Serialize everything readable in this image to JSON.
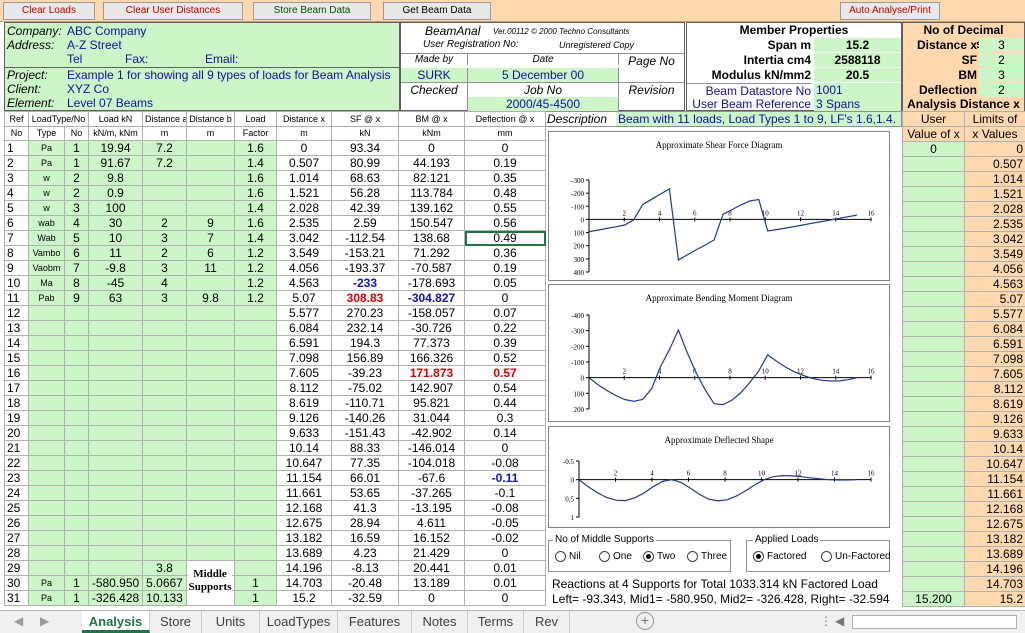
{
  "toolbar": {
    "clear_loads": "Clear Loads",
    "clear_user_distances": "Clear User Distances",
    "store_beam_data": "Store Beam Data",
    "get_beam_data": "Get Beam Data",
    "auto_analyse_print": "Auto Analyse/Print"
  },
  "info": {
    "company_label": "Company:",
    "company": "ABC Company",
    "address_label": "Address:",
    "address": "A-Z Street",
    "tel_label": "Tel",
    "fax_label": "Fax:",
    "email_label": "Email:",
    "project_label": "Project:",
    "project": "Example 1 for showing all 9 types of loads for Beam Analysis",
    "client_label": "Client:",
    "client": "XYZ Co",
    "element_label": "Element:",
    "element": "Level 07 Beams"
  },
  "beamanal": {
    "title": "BeamAnal",
    "version": "Ver.00112  © 2000 Techno Consultants",
    "registration": "User Registration No:",
    "registration_value": "Unregistered Copy",
    "made_by": "Made by",
    "date": "Date",
    "page_no": "Page No",
    "made_by_value": "SURK",
    "date_value": "5 December 00",
    "checked": "Checked",
    "job_no": "Job No",
    "revision": "Revision",
    "job_no_value": "2000/45-4500"
  },
  "member": {
    "title": "Member Properties",
    "span_label": "Span m",
    "span": "15.2",
    "inertia_label": "Intertia cm4",
    "inertia": "2588118",
    "modulus_label": "Modulus kN/mm2",
    "modulus": "20.5",
    "datastore_label": "Beam Datastore No",
    "datastore": "1001",
    "reference_label": "User Beam Reference",
    "reference": "3 Spans"
  },
  "decimals": {
    "title": "No of Decimal Places",
    "rows": [
      {
        "label": "Distance x",
        "value": "3"
      },
      {
        "label": "SF",
        "value": "2"
      },
      {
        "label": "BM",
        "value": "3"
      },
      {
        "label": "Deflection",
        "value": "2"
      }
    ],
    "analysis_title": "Analysis Distance x",
    "user_header1": "User",
    "user_header2": "Value of x",
    "limits_header1": "Limits of",
    "limits_header2": "x Values"
  },
  "description": {
    "label": "Description",
    "value": "Beam with 11 loads, Load Types 1 to 9, LF's 1.6,1.4."
  },
  "table_headers": {
    "ref": "Ref",
    "no": "No",
    "loadtype": "LoadType/No",
    "type": "Type",
    "no2": "No",
    "load": "Load kN",
    "load_unit": "kN/m, kNm",
    "dista": "Distance a",
    "distb": "Distance b",
    "m": "m",
    "lfactor": "Load",
    "factor": "Factor",
    "distx": "Distance x",
    "sf": "SF @ x",
    "kn": "kN",
    "bm": "BM @ x",
    "knm": "kNm",
    "defl": "Deflection @ x",
    "mm": "mm"
  },
  "load_rows": [
    [
      "1",
      "Pa",
      "1",
      "19.94",
      "7.2",
      "",
      "1.6"
    ],
    [
      "2",
      "Pa",
      "1",
      "91.67",
      "7.2",
      "",
      "1.4"
    ],
    [
      "3",
      "w",
      "2",
      "9.8",
      "",
      "",
      "1.6"
    ],
    [
      "4",
      "w",
      "2",
      "0.9",
      "",
      "",
      "1.6"
    ],
    [
      "5",
      "w",
      "3",
      "100",
      "",
      "",
      "1.4"
    ],
    [
      "6",
      "wab",
      "4",
      "30",
      "2",
      "9",
      "1.6"
    ],
    [
      "7",
      "Wab",
      "5",
      "10",
      "3",
      "7",
      "1.4"
    ],
    [
      "8",
      "Vambo",
      "6",
      "11",
      "2",
      "6",
      "1.2"
    ],
    [
      "9",
      "Vaobm",
      "7",
      "-9.8",
      "3",
      "11",
      "1.2"
    ],
    [
      "10",
      "Ma",
      "8",
      "-45",
      "4",
      "",
      "1.2"
    ],
    [
      "11",
      "Pab",
      "9",
      "63",
      "3",
      "9.8",
      "1.2"
    ],
    [
      "12",
      "",
      "",
      "",
      "",
      "",
      ""
    ],
    [
      "13",
      "",
      "",
      "",
      "",
      "",
      ""
    ],
    [
      "14",
      "",
      "",
      "",
      "",
      "",
      ""
    ],
    [
      "15",
      "",
      "",
      "",
      "",
      "",
      ""
    ],
    [
      "16",
      "",
      "",
      "",
      "",
      "",
      ""
    ],
    [
      "17",
      "",
      "",
      "",
      "",
      "",
      ""
    ],
    [
      "18",
      "",
      "",
      "",
      "",
      "",
      ""
    ],
    [
      "19",
      "",
      "",
      "",
      "",
      "",
      ""
    ],
    [
      "20",
      "",
      "",
      "",
      "",
      "",
      ""
    ],
    [
      "21",
      "",
      "",
      "",
      "",
      "",
      ""
    ],
    [
      "22",
      "",
      "",
      "",
      "",
      "",
      ""
    ],
    [
      "23",
      "",
      "",
      "",
      "",
      "",
      ""
    ],
    [
      "24",
      "",
      "",
      "",
      "",
      "",
      ""
    ],
    [
      "25",
      "",
      "",
      "",
      "",
      "",
      ""
    ],
    [
      "26",
      "",
      "",
      "",
      "",
      "",
      ""
    ],
    [
      "27",
      "",
      "",
      "",
      "",
      "",
      ""
    ],
    [
      "28",
      "",
      "",
      "",
      "",
      "",
      ""
    ],
    [
      "29",
      "",
      "",
      "",
      "3.8",
      "",
      ""
    ],
    [
      "30",
      "Pa",
      "1",
      "-580.950",
      "5.0667",
      "",
      "1"
    ],
    [
      "31",
      "Pa",
      "1",
      "-326.428",
      "10.133",
      "",
      "1"
    ]
  ],
  "middle_supports_label": "Middle Supports",
  "results_rows": [
    [
      "0",
      "93.34",
      "0",
      "0"
    ],
    [
      "0.507",
      "80.99",
      "44.193",
      "0.19"
    ],
    [
      "1.014",
      "68.63",
      "82.121",
      "0.35"
    ],
    [
      "1.521",
      "56.28",
      "113.784",
      "0.48"
    ],
    [
      "2.028",
      "42.39",
      "139.162",
      "0.55"
    ],
    [
      "2.535",
      "2.59",
      "150.547",
      "0.56"
    ],
    [
      "3.042",
      "-112.54",
      "138.68",
      "0.49"
    ],
    [
      "3.549",
      "-153.21",
      "71.292",
      "0.36"
    ],
    [
      "4.056",
      "-193.37",
      "-70.587",
      "0.19"
    ],
    [
      "4.563",
      "-233",
      "-178.693",
      "0.05"
    ],
    [
      "5.07",
      "308.83",
      "-304.827",
      "0"
    ],
    [
      "5.577",
      "270.23",
      "-158.057",
      "0.07"
    ],
    [
      "6.084",
      "232.14",
      "-30.726",
      "0.22"
    ],
    [
      "6.591",
      "194.3",
      "77.373",
      "0.39"
    ],
    [
      "7.098",
      "156.89",
      "166.326",
      "0.52"
    ],
    [
      "7.605",
      "-39.23",
      "171.873",
      "0.57"
    ],
    [
      "8.112",
      "-75.02",
      "142.907",
      "0.54"
    ],
    [
      "8.619",
      "-110.71",
      "95.821",
      "0.44"
    ],
    [
      "9.126",
      "-140.26",
      "31.044",
      "0.3"
    ],
    [
      "9.633",
      "-151.43",
      "-42.902",
      "0.14"
    ],
    [
      "10.14",
      "88.33",
      "-146.014",
      "0"
    ],
    [
      "10.647",
      "77.35",
      "-104.018",
      "-0.08"
    ],
    [
      "11.154",
      "66.01",
      "-67.6",
      "-0.11"
    ],
    [
      "11.661",
      "53.65",
      "-37.265",
      "-0.1"
    ],
    [
      "12.168",
      "41.3",
      "-13.195",
      "-0.08"
    ],
    [
      "12.675",
      "28.94",
      "4.611",
      "-0.05"
    ],
    [
      "13.182",
      "16.59",
      "16.152",
      "-0.02"
    ],
    [
      "13.689",
      "4.23",
      "21.429",
      "0"
    ],
    [
      "14.196",
      "-8.13",
      "20.441",
      "0.01"
    ],
    [
      "14.703",
      "-20.48",
      "13.189",
      "0.01"
    ],
    [
      "15.2",
      "-32.59",
      "0",
      "0"
    ]
  ],
  "user_x_values": [
    "0",
    "",
    "",
    "",
    "",
    "",
    "",
    "",
    "",
    "",
    "",
    "",
    "",
    "",
    "",
    "",
    "",
    "",
    "",
    "",
    "",
    "",
    "",
    "",
    "",
    "",
    "",
    "",
    "",
    "",
    "15.200"
  ],
  "limit_x_values": [
    "0",
    "0.507",
    "1.014",
    "1.521",
    "2.028",
    "2.535",
    "3.042",
    "3.549",
    "4.056",
    "4.563",
    "5.07",
    "5.577",
    "6.084",
    "6.591",
    "7.098",
    "7.605",
    "8.112",
    "8.619",
    "9.126",
    "9.633",
    "10.14",
    "10.647",
    "11.154",
    "11.661",
    "12.168",
    "12.675",
    "13.182",
    "13.689",
    "14.196",
    "14.703",
    "15.2"
  ],
  "chart_data": [
    {
      "type": "line",
      "title": "Approximate Shear Force Diagram",
      "x": [
        0,
        0.507,
        1.014,
        1.521,
        2.028,
        2.535,
        3.042,
        3.549,
        4.056,
        4.563,
        5.07,
        5.577,
        6.084,
        6.591,
        7.098,
        7.605,
        8.112,
        8.619,
        9.126,
        9.633,
        10.14,
        10.647,
        11.154,
        11.661,
        12.168,
        12.675,
        13.182,
        13.689,
        14.196,
        14.703,
        15.2
      ],
      "series": [
        {
          "values": [
            93.34,
            80.99,
            68.63,
            56.28,
            42.39,
            2.59,
            -112.54,
            -153.21,
            -193.37,
            -233,
            308.83,
            270.23,
            232.14,
            194.3,
            156.89,
            -39.23,
            -75.02,
            -110.71,
            -140.26,
            -151.43,
            88.33,
            77.35,
            66.01,
            53.65,
            41.3,
            28.94,
            16.59,
            4.23,
            -8.13,
            -20.48,
            -32.59
          ]
        }
      ],
      "xlim": [
        0,
        16
      ],
      "ylim": [
        -300,
        400
      ],
      "y_inverted": true,
      "xticks": [
        "2",
        "4",
        "6",
        "8",
        "10",
        "12",
        "14",
        "16"
      ],
      "yticks": [
        "-300",
        "-200",
        "-100",
        "0",
        "100",
        "200",
        "300",
        "400"
      ]
    },
    {
      "type": "line",
      "title": "Approximate Bending Moment Diagram",
      "x": [
        0,
        0.507,
        1.014,
        1.521,
        2.028,
        2.535,
        3.042,
        3.549,
        4.056,
        4.563,
        5.07,
        5.577,
        6.084,
        6.591,
        7.098,
        7.605,
        8.112,
        8.619,
        9.126,
        9.633,
        10.14,
        10.647,
        11.154,
        11.661,
        12.168,
        12.675,
        13.182,
        13.689,
        14.196,
        14.703,
        15.2
      ],
      "series": [
        {
          "values": [
            0,
            44.193,
            82.121,
            113.784,
            139.162,
            150.547,
            138.68,
            71.292,
            -70.587,
            -178.693,
            -304.827,
            -158.057,
            -30.726,
            77.373,
            166.326,
            171.873,
            142.907,
            95.821,
            31.044,
            -42.902,
            -146.014,
            -104.018,
            -67.6,
            -37.265,
            -13.195,
            4.611,
            16.152,
            21.429,
            20.441,
            13.189,
            0
          ]
        }
      ],
      "xlim": [
        0,
        16
      ],
      "ylim": [
        -400,
        200
      ],
      "y_inverted": true,
      "xticks": [
        "2",
        "4",
        "6",
        "8",
        "10",
        "12",
        "14",
        "16"
      ],
      "yticks": [
        "-400",
        "-300",
        "-200",
        "-100",
        "0",
        "100",
        "200"
      ]
    },
    {
      "type": "line",
      "title": "Approximate Deflected Shape",
      "x": [
        0,
        0.507,
        1.014,
        1.521,
        2.028,
        2.535,
        3.042,
        3.549,
        4.056,
        4.563,
        5.07,
        5.577,
        6.084,
        6.591,
        7.098,
        7.605,
        8.112,
        8.619,
        9.126,
        9.633,
        10.14,
        10.647,
        11.154,
        11.661,
        12.168,
        12.675,
        13.182,
        13.689,
        14.196,
        14.703,
        15.2
      ],
      "series": [
        {
          "values": [
            0,
            0.19,
            0.35,
            0.48,
            0.55,
            0.56,
            0.49,
            0.36,
            0.19,
            0.05,
            0,
            0.07,
            0.22,
            0.39,
            0.52,
            0.57,
            0.54,
            0.44,
            0.3,
            0.14,
            0,
            -0.08,
            -0.11,
            -0.1,
            -0.08,
            -0.05,
            -0.02,
            0,
            0.01,
            0.01,
            0
          ]
        }
      ],
      "xlim": [
        0,
        16
      ],
      "ylim": [
        -0.5,
        1
      ],
      "y_inverted": true,
      "xticks": [
        "2",
        "4",
        "6",
        "8",
        "10",
        "12",
        "14",
        "16"
      ],
      "yticks": [
        "-0.5",
        "0",
        "0.5",
        "1"
      ]
    }
  ],
  "middle_supports": {
    "title": "No of Middle Supports",
    "options": [
      "Nil",
      "One",
      "Two",
      "Three"
    ],
    "selected": "Two"
  },
  "applied_loads": {
    "title": "Applied Loads",
    "options": [
      "Factored",
      "Un-Factored"
    ],
    "selected": "Factored"
  },
  "reactions": {
    "line1": "Reactions at 4 Supports for Total 1033.314 kN Factored Load",
    "line2": "Left= -93.343, Mid1= -580.950, Mid2= -326.428, Right= -32.594"
  },
  "sheet_tabs": [
    "Analysis",
    "Store",
    "Units",
    "LoadTypes",
    "Features",
    "Notes",
    "Terms",
    "Rev"
  ],
  "active_tab": "Analysis"
}
